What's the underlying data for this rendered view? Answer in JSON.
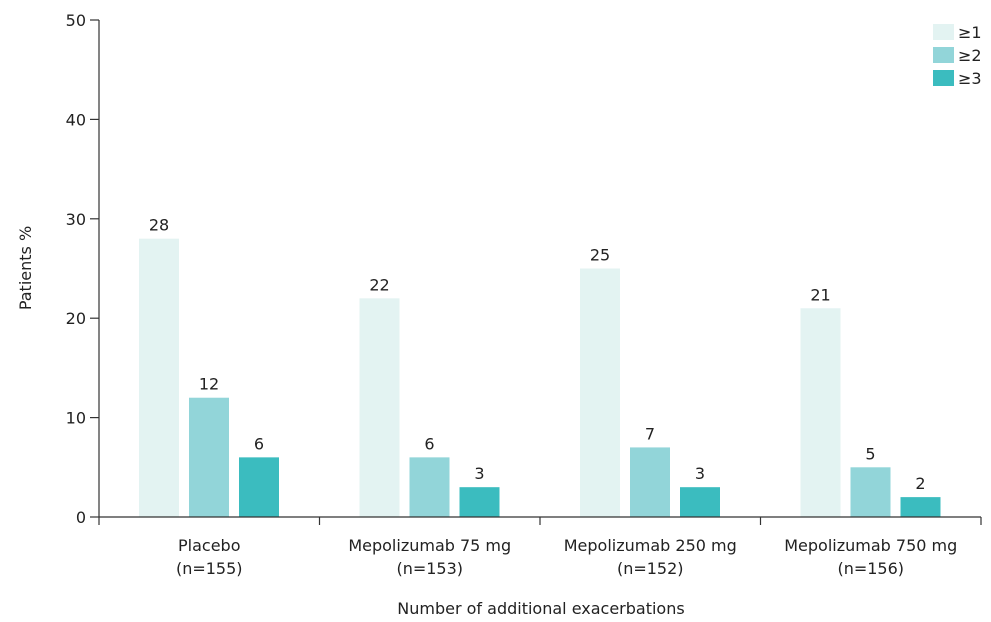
{
  "chart_data": {
    "type": "bar",
    "categories": [
      {
        "line1": "Placebo",
        "line2": "(n=155)"
      },
      {
        "line1": "Mepolizumab 75 mg",
        "line2": "(n=153)"
      },
      {
        "line1": "Mepolizumab 250 mg",
        "line2": "(n=152)"
      },
      {
        "line1": "Mepolizumab 750 mg",
        "line2": "(n=156)"
      }
    ],
    "series": [
      {
        "name": "≥1",
        "color": "#e3f3f2",
        "values": [
          28,
          22,
          25,
          21
        ]
      },
      {
        "name": "≥2",
        "color": "#92d5d9",
        "values": [
          12,
          6,
          7,
          5
        ]
      },
      {
        "name": "≥3",
        "color": "#3bbcbf",
        "values": [
          6,
          3,
          3,
          2
        ]
      }
    ],
    "xlabel": "Number of additional exacerbations",
    "ylabel": "Patients %",
    "ylim": [
      0,
      50
    ],
    "yticks": [
      0,
      10,
      20,
      30,
      40,
      50
    ],
    "legend_position": "top-right",
    "grid": false
  }
}
